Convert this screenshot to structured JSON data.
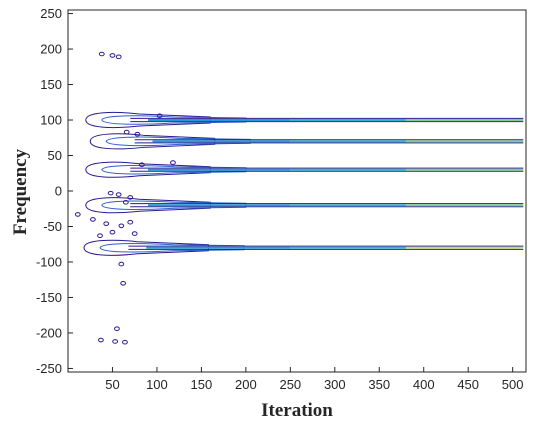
{
  "chart_data": {
    "type": "contour",
    "title": "",
    "xlabel": "Iteration",
    "ylabel": "Frequency",
    "xlim": [
      0,
      515
    ],
    "ylim": [
      -255,
      255
    ],
    "xticks": [
      50,
      100,
      150,
      200,
      250,
      300,
      350,
      400,
      450,
      500
    ],
    "yticks": [
      250,
      200,
      150,
      100,
      50,
      0,
      -50,
      -100,
      -150,
      -200,
      -250
    ],
    "grid": false,
    "legend": "none",
    "colormap": [
      "#2b1a8f",
      "#2f5fd0",
      "#1f9bd6",
      "#2ab7c9",
      "#7fcf8a",
      "#b8e070"
    ],
    "bands": [
      {
        "frequency": 100,
        "start": 20,
        "end": 512
      },
      {
        "frequency": 70,
        "start": 25,
        "end": 512
      },
      {
        "frequency": 30,
        "start": 20,
        "end": 512
      },
      {
        "frequency": -20,
        "start": 20,
        "end": 512
      },
      {
        "frequency": -80,
        "start": 18,
        "end": 512
      }
    ],
    "blobs": [
      {
        "x": 38,
        "y": 193
      },
      {
        "x": 50,
        "y": 191
      },
      {
        "x": 57,
        "y": 189
      },
      {
        "x": 103,
        "y": 106
      },
      {
        "x": 78,
        "y": 80
      },
      {
        "x": 66,
        "y": 83
      },
      {
        "x": 118,
        "y": 40
      },
      {
        "x": 83,
        "y": 37
      },
      {
        "x": 48,
        "y": -3
      },
      {
        "x": 57,
        "y": -5
      },
      {
        "x": 70,
        "y": -9
      },
      {
        "x": 65,
        "y": -16
      },
      {
        "x": 11,
        "y": -33
      },
      {
        "x": 28,
        "y": -40
      },
      {
        "x": 43,
        "y": -46
      },
      {
        "x": 60,
        "y": -49
      },
      {
        "x": 70,
        "y": -44
      },
      {
        "x": 50,
        "y": -58
      },
      {
        "x": 36,
        "y": -63
      },
      {
        "x": 75,
        "y": -60
      },
      {
        "x": 60,
        "y": -103
      },
      {
        "x": 62,
        "y": -130
      },
      {
        "x": 55,
        "y": -194
      },
      {
        "x": 37,
        "y": -210
      },
      {
        "x": 53,
        "y": -212
      },
      {
        "x": 64,
        "y": -213
      }
    ]
  }
}
